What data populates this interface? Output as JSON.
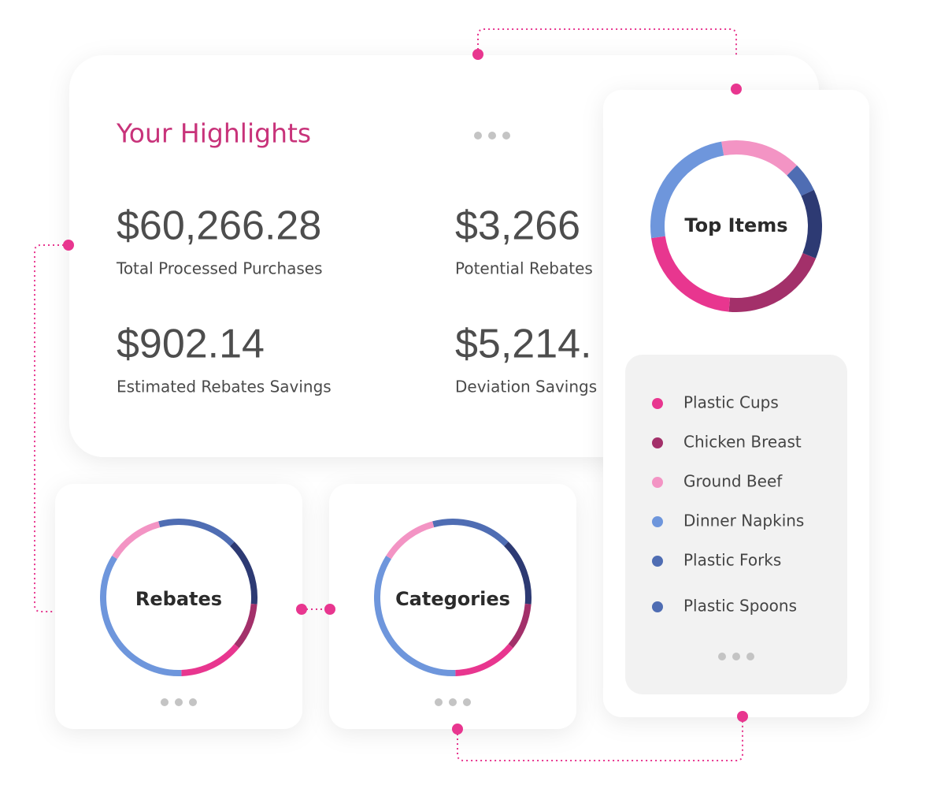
{
  "highlights": {
    "title": "Your Highlights",
    "metrics": [
      {
        "value": "$60,266.28",
        "label": "Total Processed Purchases"
      },
      {
        "value": "$3,266",
        "label": "Potential Rebates"
      },
      {
        "value": "$902.14",
        "label": "Estimated Rebates Savings"
      },
      {
        "value": "$5,214.",
        "label": "Deviation Savings"
      }
    ]
  },
  "top_items": {
    "title": "Top Items",
    "legend": [
      "Plastic Cups",
      "Chicken Breast",
      "Ground Beef",
      "Dinner Napkins",
      "Plastic Forks",
      "Plastic Spoons"
    ]
  },
  "rebates": {
    "title": "Rebates"
  },
  "categories": {
    "title": "Categories"
  }
}
